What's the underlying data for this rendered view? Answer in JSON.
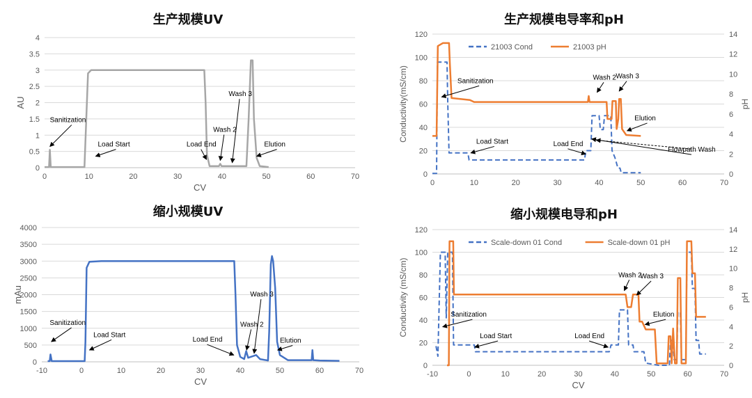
{
  "colors": {
    "uv_prod": "#a6a6a6",
    "uv_scale": "#4472c4",
    "cond": "#4472c4",
    "ph": "#ed7d31",
    "axis": "#bfbfbf",
    "grid": "#d9d9d9",
    "text": "#595959"
  },
  "chart_data": [
    {
      "type": "line",
      "title": "生产规模UV",
      "xlabel": "CV",
      "ylabel": "AU",
      "xlim": [
        0,
        70
      ],
      "ylim": [
        0,
        4
      ],
      "xticks": [
        0,
        10,
        20,
        30,
        40,
        50,
        60,
        70
      ],
      "yticks": [
        0,
        0.5,
        1,
        1.5,
        2,
        2.5,
        3,
        3.5,
        4
      ],
      "grid": true,
      "series": [
        {
          "name": "",
          "color": "uv_prod",
          "points": [
            [
              0,
              0.02
            ],
            [
              1.0,
              0.02
            ],
            [
              1.2,
              0.55
            ],
            [
              1.4,
              0.02
            ],
            [
              9.0,
              0.02
            ],
            [
              9.4,
              1.5
            ],
            [
              9.8,
              2.9
            ],
            [
              10.5,
              3.0
            ],
            [
              36.0,
              3.0
            ],
            [
              36.3,
              2.0
            ],
            [
              36.6,
              0.4
            ],
            [
              37.2,
              0.05
            ],
            [
              39.3,
              0.05
            ],
            [
              39.6,
              0.12
            ],
            [
              39.9,
              0.05
            ],
            [
              45.5,
              0.05
            ],
            [
              46.0,
              1.5
            ],
            [
              46.5,
              3.3
            ],
            [
              46.9,
              3.3
            ],
            [
              47.2,
              1.5
            ],
            [
              47.8,
              0.3
            ],
            [
              48.5,
              0.05
            ],
            [
              50.5,
              0.02
            ]
          ]
        }
      ],
      "annotations": [
        {
          "text": "Sanitization",
          "x": 1.2,
          "y": 1.4,
          "ax": 1.2,
          "ay": 0.65
        },
        {
          "text": "Load Start",
          "x": 12,
          "y": 0.65,
          "ax": 11.5,
          "ay": 0.35
        },
        {
          "text": "Load End",
          "x": 32,
          "y": 0.65,
          "ax": 36.5,
          "ay": 0.25
        },
        {
          "text": "Wash 2",
          "x": 38,
          "y": 1.1,
          "ax": 39.6,
          "ay": 0.22
        },
        {
          "text": "Wash 3",
          "x": 41.5,
          "y": 2.2,
          "ax": 42.3,
          "ay": 0.15
        },
        {
          "text": "Elution",
          "x": 49.5,
          "y": 0.65,
          "ax": 47.8,
          "ay": 0.35
        }
      ]
    },
    {
      "type": "line",
      "title": "生产规模电导率和pH",
      "xlabel": "",
      "ylabel": "Conductivity(mS/cm)",
      "y2label": "pH",
      "xlim": [
        0,
        70
      ],
      "ylim": [
        0,
        120
      ],
      "y2lim": [
        0,
        14
      ],
      "xticks": [
        0,
        10,
        20,
        30,
        40,
        50,
        60,
        70
      ],
      "yticks": [
        0,
        20,
        40,
        60,
        80,
        100,
        120
      ],
      "y2ticks": [
        0,
        2,
        4,
        6,
        8,
        10,
        12,
        14
      ],
      "grid": true,
      "legend": "top-center",
      "series": [
        {
          "name": "21003 Cond",
          "color": "cond",
          "dash": true,
          "axis": "left",
          "points": [
            [
              0,
              0.5
            ],
            [
              1.0,
              0.5
            ],
            [
              1.2,
              96
            ],
            [
              3.5,
              96
            ],
            [
              3.7,
              60
            ],
            [
              4.0,
              18
            ],
            [
              8.5,
              18
            ],
            [
              8.8,
              12
            ],
            [
              36.5,
              12
            ],
            [
              36.8,
              20
            ],
            [
              38.0,
              20
            ],
            [
              38.3,
              50
            ],
            [
              40.0,
              50
            ],
            [
              40.3,
              38
            ],
            [
              41.0,
              38
            ],
            [
              41.3,
              50
            ],
            [
              42.8,
              50
            ],
            [
              43.1,
              20
            ],
            [
              43.8,
              14
            ],
            [
              44.5,
              5
            ],
            [
              45.0,
              5
            ],
            [
              45.3,
              1
            ],
            [
              50,
              1
            ]
          ]
        },
        {
          "name": "21003 pH",
          "color": "ph",
          "axis": "right",
          "points": [
            [
              0,
              3.8
            ],
            [
              1.0,
              3.8
            ],
            [
              1.3,
              12.8
            ],
            [
              2.5,
              13.1
            ],
            [
              4.0,
              13.1
            ],
            [
              4.2,
              11.0
            ],
            [
              4.6,
              7.6
            ],
            [
              9,
              7.4
            ],
            [
              10,
              7.2
            ],
            [
              20,
              7.2
            ],
            [
              30,
              7.2
            ],
            [
              37.3,
              7.2
            ],
            [
              37.5,
              7.8
            ],
            [
              37.7,
              7.2
            ],
            [
              40,
              7.2
            ],
            [
              41.8,
              7.2
            ],
            [
              42.0,
              5.5
            ],
            [
              43.0,
              5.5
            ],
            [
              43.2,
              7.3
            ],
            [
              44.0,
              7.3
            ],
            [
              44.2,
              4.5
            ],
            [
              44.6,
              5.5
            ],
            [
              44.8,
              7.5
            ],
            [
              45.2,
              7.5
            ],
            [
              45.5,
              4.5
            ],
            [
              46.5,
              3.9
            ],
            [
              50,
              3.8
            ]
          ]
        }
      ],
      "annotations": [
        {
          "text": "Sanitization",
          "x": 6,
          "y": 78,
          "ax": 2.2,
          "ay": 66
        },
        {
          "text": "Load Start",
          "x": 10.5,
          "y": 26,
          "ax": 9.2,
          "ay": 18
        },
        {
          "text": "Load End",
          "x": 29,
          "y": 24,
          "ax": 36.8,
          "ay": 17
        },
        {
          "text": "Wash 2",
          "x": 38.5,
          "y": 81,
          "ax": 39.5,
          "ay": 70
        },
        {
          "text": "Wash 3",
          "x": 44,
          "y": 82,
          "ax": 44.8,
          "ay": 71
        },
        {
          "text": "Elution",
          "x": 48.5,
          "y": 46,
          "ax": 46.7,
          "ay": 37
        },
        {
          "text": "Flowpath Wash",
          "x": 56.5,
          "y": 19,
          "ax": 38.2,
          "ay": 30,
          "ax2": 39.3,
          "ay2": 29
        }
      ]
    },
    {
      "type": "line",
      "title": "缩小规模UV",
      "xlabel": "CV",
      "ylabel": "mAu",
      "xlim": [
        -10,
        70
      ],
      "ylim": [
        0,
        4000
      ],
      "xticks": [
        -10,
        0,
        10,
        20,
        30,
        40,
        50,
        60,
        70
      ],
      "yticks": [
        0,
        500,
        1000,
        1500,
        2000,
        2500,
        3000,
        3500,
        4000
      ],
      "grid": true,
      "series": [
        {
          "name": "",
          "color": "uv_scale",
          "points": [
            [
              -8.5,
              20
            ],
            [
              -8.0,
              20
            ],
            [
              -7.8,
              220
            ],
            [
              -7.5,
              20
            ],
            [
              0.8,
              20
            ],
            [
              1.0,
              600
            ],
            [
              1.3,
              2800
            ],
            [
              2.0,
              2980
            ],
            [
              5,
              3000
            ],
            [
              38.5,
              3000
            ],
            [
              38.8,
              2000
            ],
            [
              39.2,
              500
            ],
            [
              40,
              150
            ],
            [
              41,
              80
            ],
            [
              41.5,
              320
            ],
            [
              42,
              120
            ],
            [
              44,
              200
            ],
            [
              45,
              80
            ],
            [
              47,
              40
            ],
            [
              47.3,
              900
            ],
            [
              47.7,
              2900
            ],
            [
              48.0,
              3150
            ],
            [
              48.3,
              3000
            ],
            [
              48.8,
              2200
            ],
            [
              49.3,
              600
            ],
            [
              50,
              200
            ],
            [
              52,
              50
            ],
            [
              58,
              50
            ],
            [
              58.2,
              350
            ],
            [
              58.4,
              50
            ],
            [
              60,
              40
            ],
            [
              65,
              30
            ]
          ]
        }
      ],
      "annotations": [
        {
          "text": "Sanitization",
          "x": -8,
          "y": 1100,
          "ax": -7.6,
          "ay": 600
        },
        {
          "text": "Load Start",
          "x": 3,
          "y": 740,
          "ax": 2,
          "ay": 350
        },
        {
          "text": "Load End",
          "x": 28,
          "y": 600,
          "ax": 38.4,
          "ay": 200
        },
        {
          "text": "Wash 2",
          "x": 40,
          "y": 1050,
          "ax": 41.6,
          "ay": 350
        },
        {
          "text": "Wash 3",
          "x": 42.5,
          "y": 1950,
          "ax": 43.5,
          "ay": 250
        },
        {
          "text": "Elution",
          "x": 50,
          "y": 570,
          "ax": 49.4,
          "ay": 350
        }
      ]
    },
    {
      "type": "line",
      "title": "缩小规模电导和pH",
      "xlabel": "CV",
      "ylabel": "Conductivity (mS/cm)",
      "y2label": "pH",
      "xlim": [
        -10,
        70
      ],
      "ylim": [
        0,
        120
      ],
      "y2lim": [
        0,
        14
      ],
      "xticks": [
        -10,
        0,
        10,
        20,
        30,
        40,
        50,
        60,
        70
      ],
      "yticks": [
        0,
        20,
        40,
        60,
        80,
        100,
        120
      ],
      "y2ticks": [
        0,
        2,
        4,
        6,
        8,
        10,
        12,
        14
      ],
      "grid": true,
      "legend": "top-center",
      "series": [
        {
          "name": "Scale-down 01 Cond",
          "color": "cond",
          "dash": true,
          "axis": "left",
          "points": [
            [
              -9,
              17
            ],
            [
              -8.5,
              8
            ],
            [
              -7.8,
              100
            ],
            [
              -6.5,
              100
            ],
            [
              -6.2,
              42
            ],
            [
              -5.8,
              100
            ],
            [
              -4.5,
              100
            ],
            [
              -4.2,
              18
            ],
            [
              1.5,
              18
            ],
            [
              1.8,
              12
            ],
            [
              38.5,
              12
            ],
            [
              39,
              18
            ],
            [
              41,
              18
            ],
            [
              41.3,
              49
            ],
            [
              43.5,
              49
            ],
            [
              43.8,
              18
            ],
            [
              45,
              18
            ],
            [
              45.3,
              12
            ],
            [
              48,
              12
            ],
            [
              48.5,
              2
            ],
            [
              52,
              0
            ],
            [
              55,
              0
            ],
            [
              55.3,
              22
            ],
            [
              56,
              22
            ],
            [
              56.3,
              5
            ],
            [
              57,
              5
            ],
            [
              57.3,
              47
            ],
            [
              58,
              47
            ],
            [
              58.3,
              5
            ],
            [
              59.5,
              5
            ],
            [
              59.8,
              100
            ],
            [
              61,
              100
            ],
            [
              61.3,
              68
            ],
            [
              62,
              68
            ],
            [
              62.3,
              22
            ],
            [
              63,
              22
            ],
            [
              63.3,
              10
            ],
            [
              65,
              10
            ]
          ]
        },
        {
          "name": "Scale-down 01 pH",
          "color": "ph",
          "axis": "right",
          "points": [
            [
              -6,
              0
            ],
            [
              -5.5,
              0
            ],
            [
              -5.3,
              12.8
            ],
            [
              -4.3,
              12.8
            ],
            [
              -4.1,
              7.3
            ],
            [
              10,
              7.3
            ],
            [
              40,
              7.3
            ],
            [
              43,
              7.3
            ],
            [
              43.5,
              6.0
            ],
            [
              44.5,
              6.0
            ],
            [
              45,
              7.3
            ],
            [
              46.5,
              7.3
            ],
            [
              46.8,
              4.5
            ],
            [
              47.5,
              4.5
            ],
            [
              48.5,
              3.7
            ],
            [
              51,
              3.7
            ],
            [
              51.5,
              0.2
            ],
            [
              54.5,
              0.2
            ],
            [
              54.8,
              3.0
            ],
            [
              55.3,
              3.0
            ],
            [
              55.6,
              0.2
            ],
            [
              56,
              3.8
            ],
            [
              56.5,
              0.2
            ],
            [
              57,
              0.2
            ],
            [
              57.3,
              9.0
            ],
            [
              58,
              9.0
            ],
            [
              58.3,
              0.2
            ],
            [
              59.5,
              0.2
            ],
            [
              59.8,
              12.8
            ],
            [
              61,
              12.8
            ],
            [
              61.3,
              9.5
            ],
            [
              62,
              9.5
            ],
            [
              62.3,
              5.0
            ],
            [
              65,
              5.0
            ]
          ]
        }
      ],
      "annotations": [
        {
          "text": "Sanitization",
          "x": -5,
          "y": 43,
          "ax": -7.2,
          "ay": 34
        },
        {
          "text": "Load Start",
          "x": 3,
          "y": 24,
          "ax": 1.6,
          "ay": 16
        },
        {
          "text": "Load End",
          "x": 29,
          "y": 24,
          "ax": 38.2,
          "ay": 16
        },
        {
          "text": "Wash 2",
          "x": 41,
          "y": 78,
          "ax": 42.6,
          "ay": 66
        },
        {
          "text": "Wash 3",
          "x": 47,
          "y": 77,
          "ax": 46,
          "ay": 62
        },
        {
          "text": "Elution",
          "x": 50.5,
          "y": 43,
          "ax": 48.3,
          "ay": 36
        }
      ]
    }
  ]
}
